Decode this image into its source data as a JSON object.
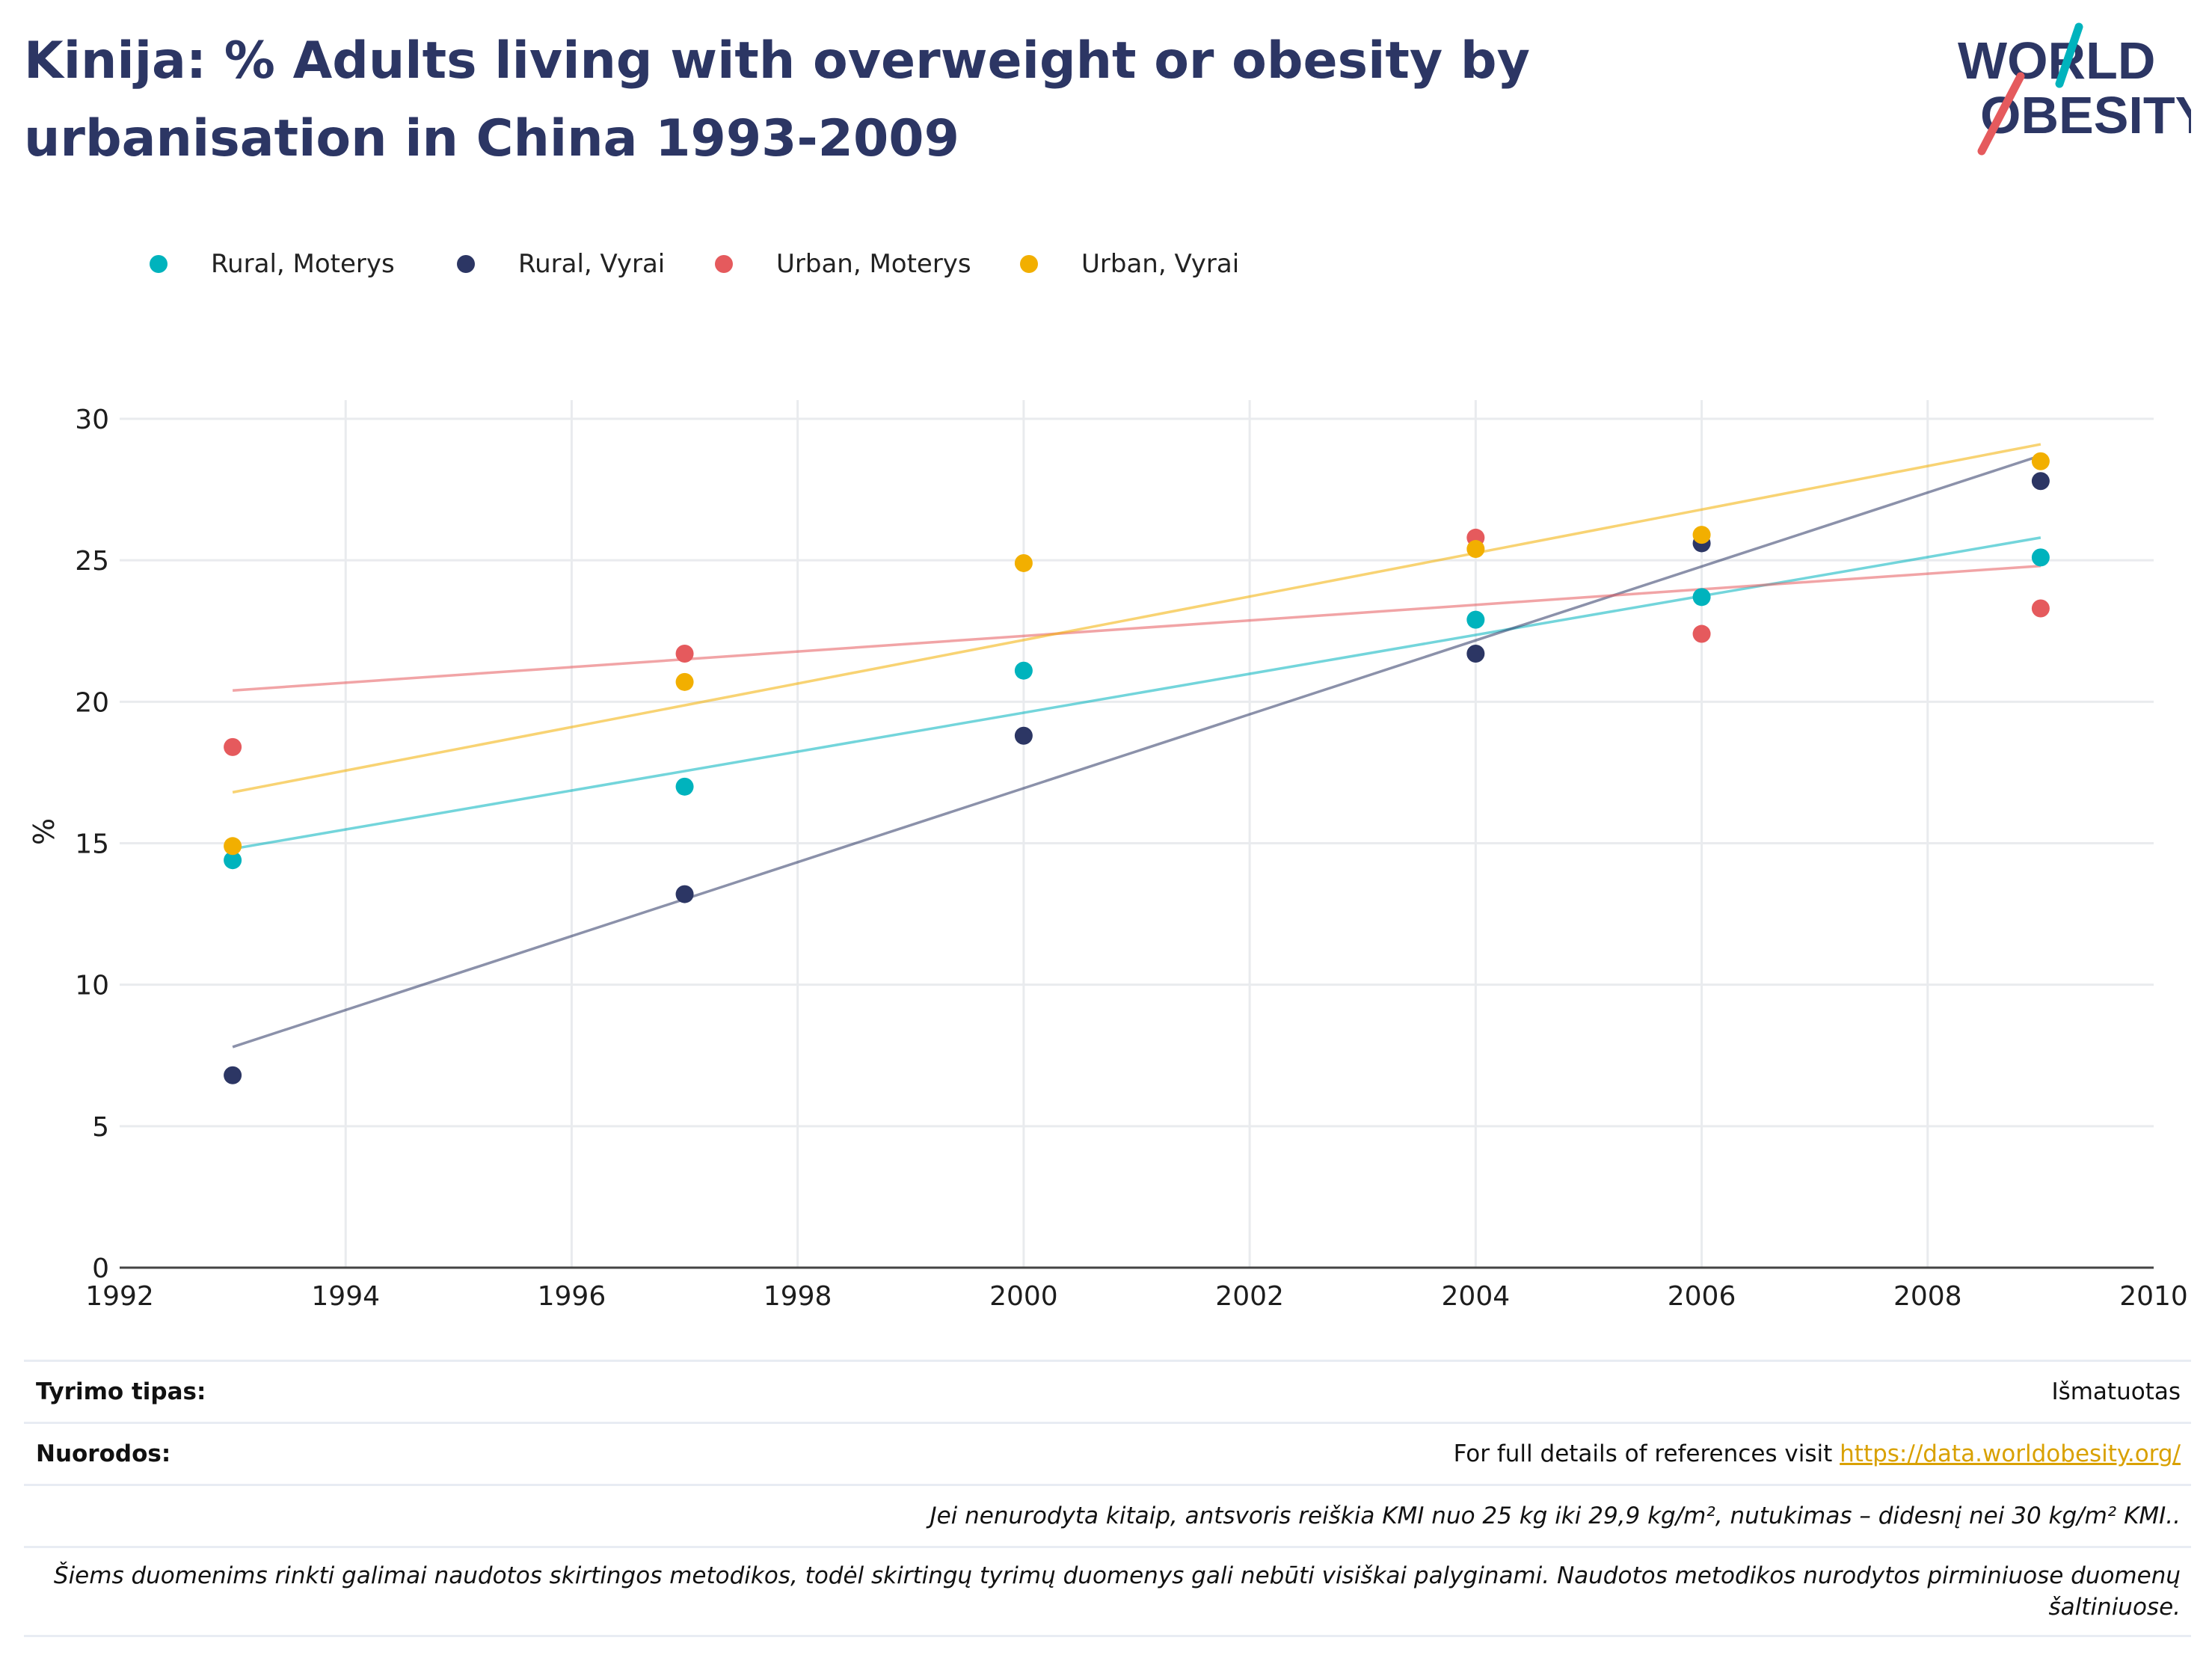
{
  "title": "Kinija: % Adults living with overweight or obesity by urbanisation in China 1993-2009",
  "logo": {
    "line1": "WORLD",
    "line2": "OBESITY"
  },
  "legend": [
    {
      "label": "Rural, Moterys",
      "color": "#00b3bd"
    },
    {
      "label": "Rural, Vyrai",
      "color": "#2c3664"
    },
    {
      "label": "Urban, Moterys",
      "color": "#e55a5d"
    },
    {
      "label": "Urban, Vyrai",
      "color": "#f2af00"
    }
  ],
  "chart_data": {
    "type": "scatter",
    "title": "Kinija: % Adults living with overweight or obesity by urbanisation in China 1993-2009",
    "xlabel": "",
    "ylabel": "%",
    "xlim": [
      1992,
      2010
    ],
    "ylim": [
      0,
      30
    ],
    "x_ticks": [
      1992,
      1994,
      1996,
      1998,
      2000,
      2002,
      2004,
      2006,
      2008,
      2010
    ],
    "y_ticks": [
      0,
      5,
      10,
      15,
      20,
      25,
      30
    ],
    "grid": true,
    "legend_position": "top-left",
    "trendlines": true,
    "series": [
      {
        "name": "Rural, Moterys",
        "color": "#00b3bd",
        "x": [
          1993,
          1997,
          2000,
          2004,
          2006,
          2009
        ],
        "y": [
          14.4,
          17.0,
          21.1,
          22.9,
          23.7,
          25.1
        ],
        "trend": [
          [
            1993,
            14.8
          ],
          [
            2009,
            25.8
          ]
        ]
      },
      {
        "name": "Rural, Vyrai",
        "color": "#2c3664",
        "x": [
          1993,
          1997,
          2000,
          2004,
          2006,
          2009
        ],
        "y": [
          6.8,
          13.2,
          18.8,
          21.7,
          25.6,
          27.8
        ],
        "trend": [
          [
            1993,
            7.8
          ],
          [
            2009,
            28.7
          ]
        ]
      },
      {
        "name": "Urban, Moterys",
        "color": "#e55a5d",
        "x": [
          1993,
          1997,
          2004,
          2006,
          2009
        ],
        "y": [
          18.4,
          21.7,
          25.8,
          22.4,
          23.3
        ],
        "trend": [
          [
            1993,
            20.4
          ],
          [
            2009,
            24.8
          ]
        ]
      },
      {
        "name": "Urban, Vyrai",
        "color": "#f2af00",
        "x": [
          1993,
          1997,
          2000,
          2004,
          2006,
          2009
        ],
        "y": [
          14.9,
          20.7,
          24.9,
          25.4,
          25.9,
          28.5
        ],
        "trend": [
          [
            1993,
            16.8
          ],
          [
            2009,
            29.1
          ]
        ]
      }
    ]
  },
  "meta": {
    "study_type_label": "Tyrimo tipas:",
    "study_type_value": "Išmatuotas",
    "references_label": "Nuorodos:",
    "references_text": "For full details of references visit ",
    "references_link": "https://data.worldobesity.org/",
    "note1": "Jei nenurodyta kitaip, antsvoris reiškia KMI nuo 25 kg iki 29,9 kg/m², nutukimas – didesnį nei 30 kg/m² KMI..",
    "note2": "Šiems duomenims rinkti galimai naudotos skirtingos metodikos, todėl skirtingų tyrimų duomenys gali nebūti visiškai palyginami. Naudotos metodikos nurodytos pirminiuose duomenų šaltiniuose."
  }
}
